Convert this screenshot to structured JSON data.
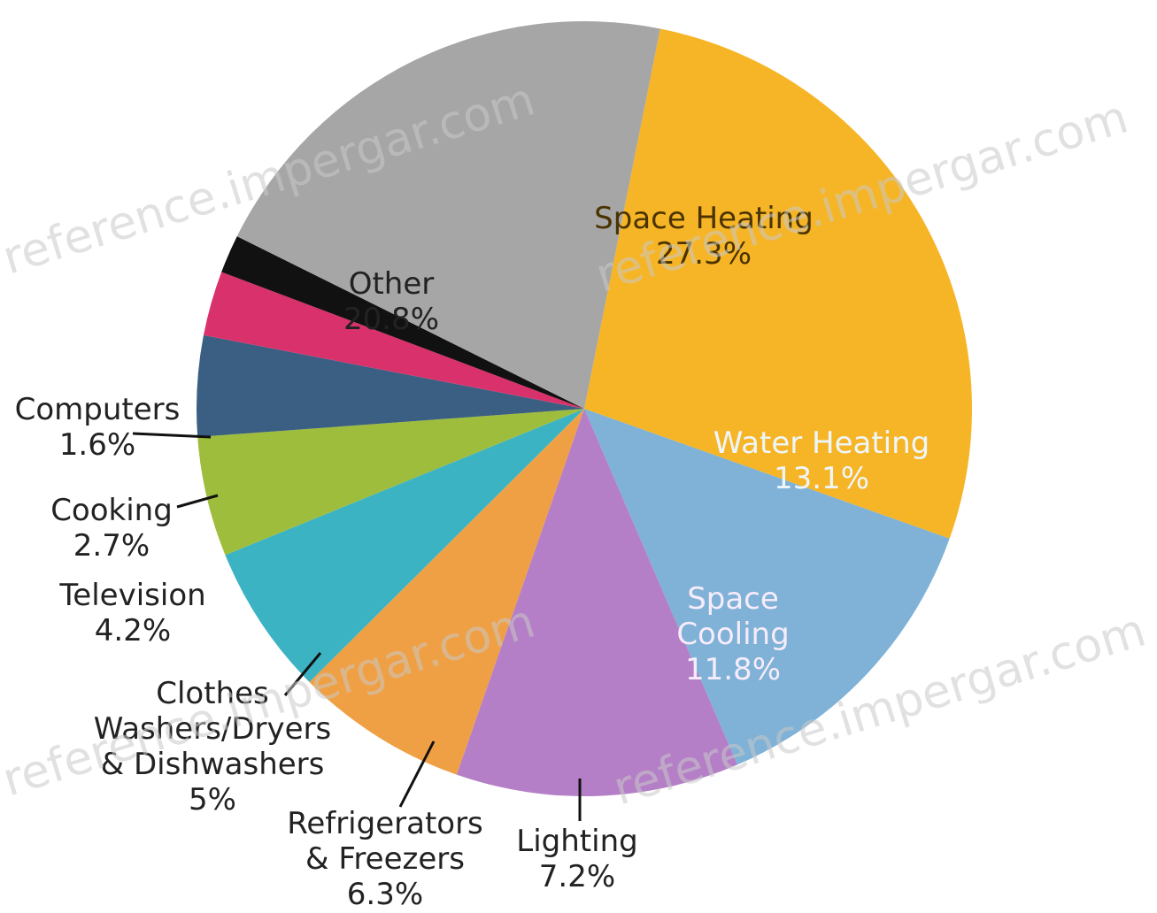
{
  "chart_data": {
    "type": "pie",
    "slices": [
      {
        "label": "Space Heating",
        "value": 27.3,
        "value_text": "27.3%",
        "color": "#f6b526",
        "text_color": "#4a3300"
      },
      {
        "label": "Water Heating",
        "value": 13.1,
        "value_text": "13.1%",
        "color": "#7fb2d6",
        "text_color": "#eef6fb"
      },
      {
        "label": "Space Cooling",
        "value": 11.8,
        "value_text": "11.8%",
        "color": "#b47fc6",
        "text_color": "#f7ecfb"
      },
      {
        "label": "Lighting",
        "value": 7.2,
        "value_text": "7.2%",
        "color": "#f0a044",
        "text_color": "#222222"
      },
      {
        "label": "Refrigerators & Freezers",
        "value": 6.3,
        "value_text": "6.3%",
        "color": "#3cb3c3",
        "text_color": "#222222"
      },
      {
        "label": "Clothes Washers/Dryers & Dishwashers",
        "value": 5.0,
        "value_text": "5%",
        "color": "#9fbd3c",
        "text_color": "#222222"
      },
      {
        "label": "Television",
        "value": 4.2,
        "value_text": "4.2%",
        "color": "#3a5f82",
        "text_color": "#222222"
      },
      {
        "label": "Cooking",
        "value": 2.7,
        "value_text": "2.7%",
        "color": "#d9316b",
        "text_color": "#222222"
      },
      {
        "label": "Computers",
        "value": 1.6,
        "value_text": "1.6%",
        "color": "#111111",
        "text_color": "#222222"
      },
      {
        "label": "Other",
        "value": 20.8,
        "value_text": "20.8%",
        "color": "#a6a6a6",
        "text_color": "#222222"
      }
    ],
    "watermark": "reference.impergar.com"
  }
}
